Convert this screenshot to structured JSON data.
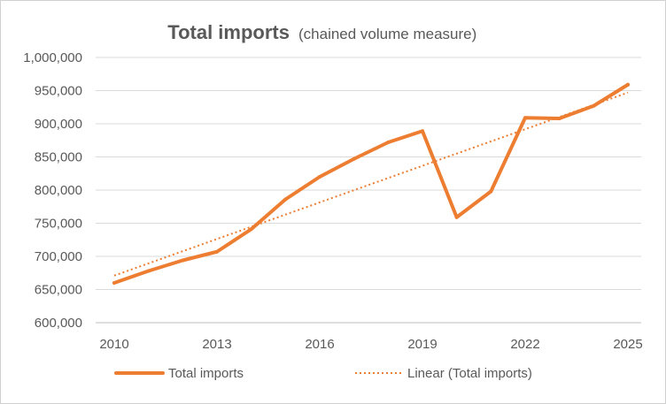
{
  "chart_data": {
    "type": "line",
    "title": "Total imports",
    "subtitle": "(chained volume measure)",
    "xlabel": "",
    "ylabel": "",
    "x": [
      2010,
      2011,
      2012,
      2013,
      2014,
      2015,
      2016,
      2017,
      2018,
      2019,
      2020,
      2021,
      2022,
      2023,
      2024,
      2025
    ],
    "series": [
      {
        "name": "Total imports",
        "color": "#ED7D31",
        "style": "solid",
        "values": [
          660000,
          678000,
          694000,
          707000,
          741000,
          786000,
          820000,
          847000,
          872000,
          889000,
          759000,
          798000,
          909000,
          908000,
          927000,
          959000
        ]
      },
      {
        "name": "Linear (Total imports)",
        "color": "#ED7D31",
        "style": "dotted",
        "trendline_of": "Total imports",
        "values": [
          671000,
          947000
        ],
        "x": [
          2010,
          2025
        ]
      }
    ],
    "xticks": [
      "2010",
      "2013",
      "2016",
      "2019",
      "2022",
      "2025"
    ],
    "xtick_values": [
      2010,
      2013,
      2016,
      2019,
      2022,
      2025
    ],
    "yticks": [
      "600,000",
      "650,000",
      "700,000",
      "750,000",
      "800,000",
      "850,000",
      "900,000",
      "950,000",
      "1,000,000"
    ],
    "ytick_values": [
      600000,
      650000,
      700000,
      750000,
      800000,
      850000,
      900000,
      950000,
      1000000
    ],
    "ylim": [
      600000,
      1000000
    ],
    "xlim": [
      2010,
      2025
    ],
    "grid": "horizontal",
    "legend_position": "bottom",
    "legend": [
      "Total imports",
      "Linear (Total imports)"
    ]
  }
}
